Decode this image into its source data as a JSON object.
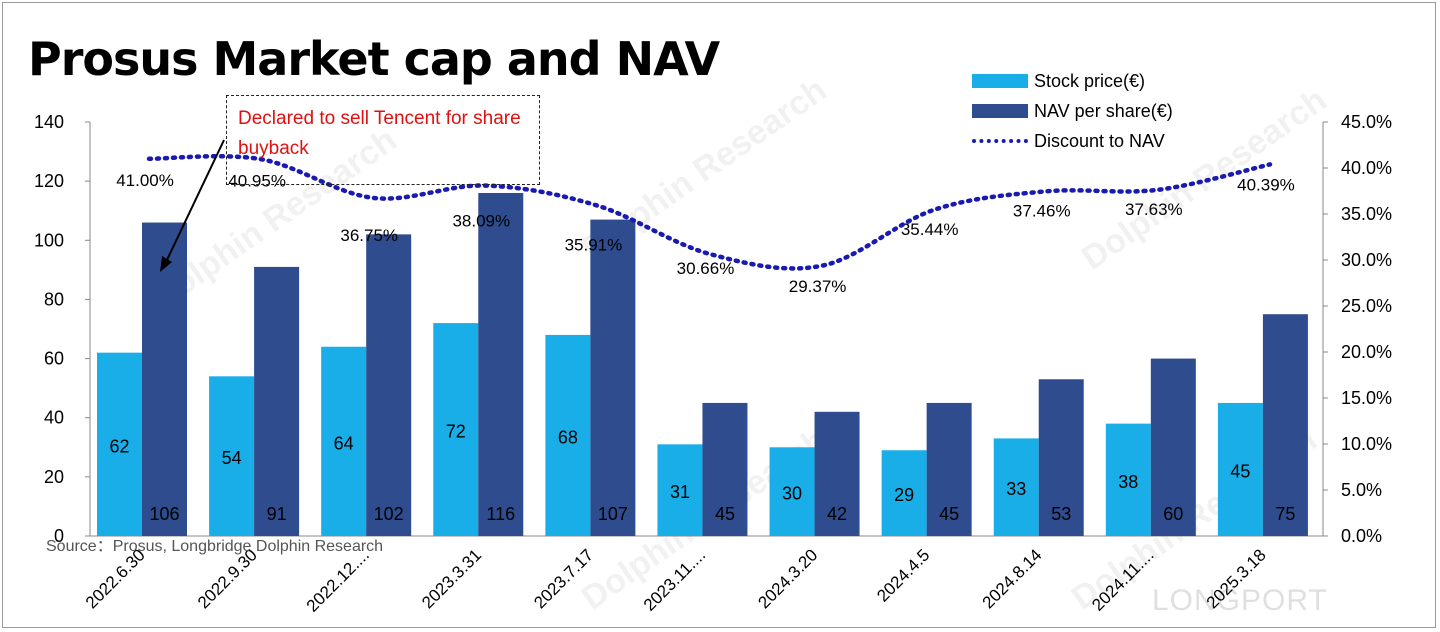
{
  "title": "Prosus Market cap and NAV",
  "callout": {
    "text": "Declared to sell Tencent for share buyback"
  },
  "source": "Source：Prosus, Longbridge Dolphin Research",
  "brand": "LONGPORT",
  "watermark": "Dolphin Research",
  "colors": {
    "stock": "#1aaee8",
    "nav": "#2e4c8e",
    "discount": "#1a1ab0",
    "callout_text": "#e01010"
  },
  "chart_data": {
    "type": "bar",
    "title": "Prosus Market cap and NAV",
    "categories": [
      "2022.6.30",
      "2022.9.30",
      "2022.12....",
      "2023.3.31",
      "2023.7.17",
      "2023.11....",
      "2024.3.20",
      "2024.4.5",
      "2024.8.14",
      "2024.11....",
      "2025.3.18"
    ],
    "series": [
      {
        "name": "Stock price(€)",
        "values": [
          62,
          54,
          64,
          72,
          68,
          31,
          30,
          29,
          33,
          38,
          45
        ],
        "axis": "left"
      },
      {
        "name": "NAV per share(€)",
        "values": [
          106,
          91,
          102,
          116,
          107,
          45,
          42,
          45,
          53,
          60,
          75
        ],
        "axis": "left"
      },
      {
        "name": "Discount to NAV",
        "values": [
          41.0,
          40.95,
          36.75,
          38.09,
          35.91,
          30.66,
          29.37,
          35.44,
          37.46,
          37.63,
          40.39
        ],
        "labels": [
          "41.00%",
          "40.95%",
          "36.75%",
          "38.09%",
          "35.91%",
          "30.66%",
          "29.37%",
          "35.44%",
          "37.46%",
          "37.63%",
          "40.39%"
        ],
        "axis": "right",
        "style": "dotted-line"
      }
    ],
    "y_left": {
      "range": [
        0,
        140
      ],
      "ticks": [
        "0",
        "20",
        "40",
        "60",
        "80",
        "100",
        "120",
        "140"
      ]
    },
    "y_right": {
      "range": [
        0,
        45
      ],
      "ticks": [
        "0.0%",
        "5.0%",
        "10.0%",
        "15.0%",
        "20.0%",
        "25.0%",
        "30.0%",
        "35.0%",
        "40.0%",
        "45.0%"
      ]
    },
    "legend": [
      "Stock price(€)",
      "NAV per share(€)",
      "Discount to NAV"
    ],
    "legend_position": "top-right",
    "grid": false
  }
}
